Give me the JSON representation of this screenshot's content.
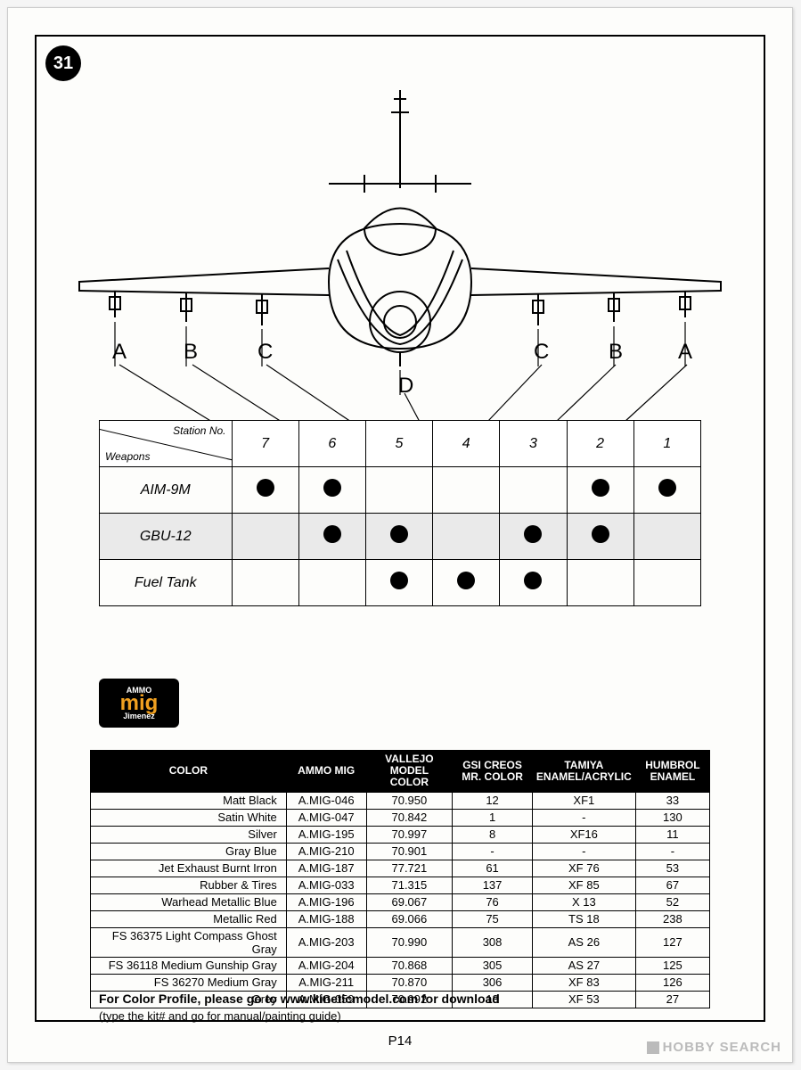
{
  "step_number": "31",
  "page_number": "P14",
  "station_labels": {
    "A_left": "A",
    "B_left": "B",
    "C_left": "C",
    "D": "D",
    "C_right": "C",
    "B_right": "B",
    "A_right": "A"
  },
  "weapons_table": {
    "corner_top": "Station No.",
    "corner_bottom": "Weapons",
    "columns": [
      "7",
      "6",
      "5",
      "4",
      "3",
      "2",
      "1"
    ],
    "rows": [
      {
        "label": "AIM-9M",
        "shaded": false,
        "cells": [
          true,
          true,
          false,
          false,
          false,
          true,
          true
        ]
      },
      {
        "label": "GBU-12",
        "shaded": true,
        "cells": [
          false,
          true,
          true,
          false,
          true,
          true,
          false
        ]
      },
      {
        "label": "Fuel Tank",
        "shaded": false,
        "cells": [
          false,
          false,
          true,
          true,
          true,
          false,
          false
        ]
      }
    ]
  },
  "logo": {
    "brand": "mig",
    "top": "AMMO",
    "bottom": "Jimenez"
  },
  "color_table": {
    "headers": [
      "COLOR",
      "AMMO MIG",
      "VALLEJO MODEL COLOR",
      "GSI CREOS MR. COLOR",
      "TAMIYA ENAMEL/ACRYLIC",
      "HUMBROL ENAMEL"
    ],
    "rows": [
      [
        "Matt Black",
        "A.MIG-046",
        "70.950",
        "12",
        "XF1",
        "33"
      ],
      [
        "Satin White",
        "A.MIG-047",
        "70.842",
        "1",
        "-",
        "130"
      ],
      [
        "Silver",
        "A.MIG-195",
        "70.997",
        "8",
        "XF16",
        "11"
      ],
      [
        "Gray Blue",
        "A.MIG-210",
        "70.901",
        "-",
        "-",
        "-"
      ],
      [
        "Jet Exhaust Burnt Irron",
        "A.MIG-187",
        "77.721",
        "61",
        "XF 76",
        "53"
      ],
      [
        "Rubber & Tires",
        "A.MIG-033",
        "71.315",
        "137",
        "XF 85",
        "67"
      ],
      [
        "Warhead Metallic Blue",
        "A.MIG-196",
        "69.067",
        "76",
        "X 13",
        "52"
      ],
      [
        "Metallic Red",
        "A.MIG-188",
        "69.066",
        "75",
        "TS 18",
        "238"
      ],
      [
        "FS 36375 Light Compass Ghost Gray",
        "A.MIG-203",
        "70.990",
        "308",
        "AS 26",
        "127"
      ],
      [
        "FS 36118 Medium Gunship Gray",
        "A.MIG-204",
        "70.868",
        "305",
        "AS 27",
        "125"
      ],
      [
        "FS 36270 Medium Gray",
        "A.MIG-211",
        "70.870",
        "306",
        "XF 83",
        "126"
      ],
      [
        "Grey",
        "A.MIG-059",
        "70.992",
        "13",
        "XF 53",
        "27"
      ]
    ],
    "widths": [
      "32%",
      "13%",
      "14%",
      "13%",
      "16%",
      "12%"
    ]
  },
  "footnote": {
    "line1": "For Color Profile, please go to www.kineticmodel.com for download",
    "line2": "(type the kit# and go for manual/painting guide)"
  },
  "watermark": "HOBBY SEARCH",
  "colors": {
    "page_bg": "#fdfdfb",
    "line": "#000000",
    "header_bg": "#000000",
    "header_fg": "#ffffff",
    "shade": "#eaeaea",
    "logo_fg": "#f0a020",
    "watermark": "#bbbbbb"
  }
}
